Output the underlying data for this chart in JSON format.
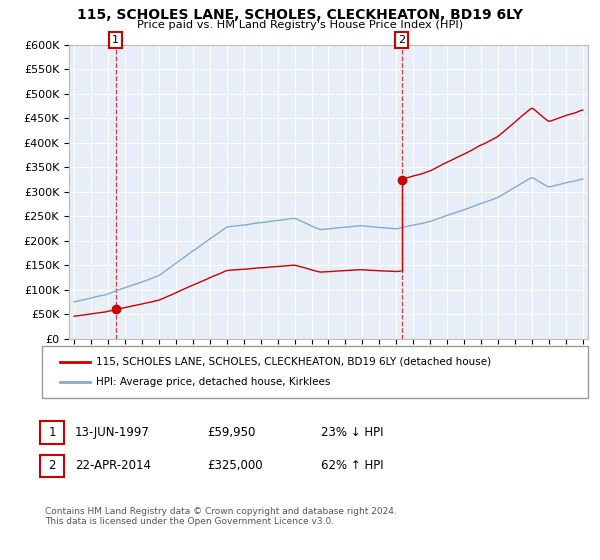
{
  "title": "115, SCHOLES LANE, SCHOLES, CLECKHEATON, BD19 6LY",
  "subtitle": "Price paid vs. HM Land Registry's House Price Index (HPI)",
  "ylim": [
    0,
    600000
  ],
  "yticks": [
    0,
    50000,
    100000,
    150000,
    200000,
    250000,
    300000,
    350000,
    400000,
    450000,
    500000,
    550000,
    600000
  ],
  "ytick_labels": [
    "£0",
    "£50K",
    "£100K",
    "£150K",
    "£200K",
    "£250K",
    "£300K",
    "£350K",
    "£400K",
    "£450K",
    "£500K",
    "£550K",
    "£600K"
  ],
  "line1_color": "#cc0000",
  "line2_color": "#88aacc",
  "sale1_date": 1997.45,
  "sale1_price": 59950,
  "sale2_date": 2014.31,
  "sale2_price": 325000,
  "legend1": "115, SCHOLES LANE, SCHOLES, CLECKHEATON, BD19 6LY (detached house)",
  "legend2": "HPI: Average price, detached house, Kirklees",
  "row1_label": "1",
  "row1_date": "13-JUN-1997",
  "row1_price": "£59,950",
  "row1_hpi": "23% ↓ HPI",
  "row2_label": "2",
  "row2_date": "22-APR-2014",
  "row2_price": "£325,000",
  "row2_hpi": "62% ↑ HPI",
  "copyright": "Contains HM Land Registry data © Crown copyright and database right 2024.\nThis data is licensed under the Open Government Licence v3.0.",
  "background_color": "#ffffff",
  "plot_bg_color": "#e8eef8",
  "grid_color": "#ffffff"
}
